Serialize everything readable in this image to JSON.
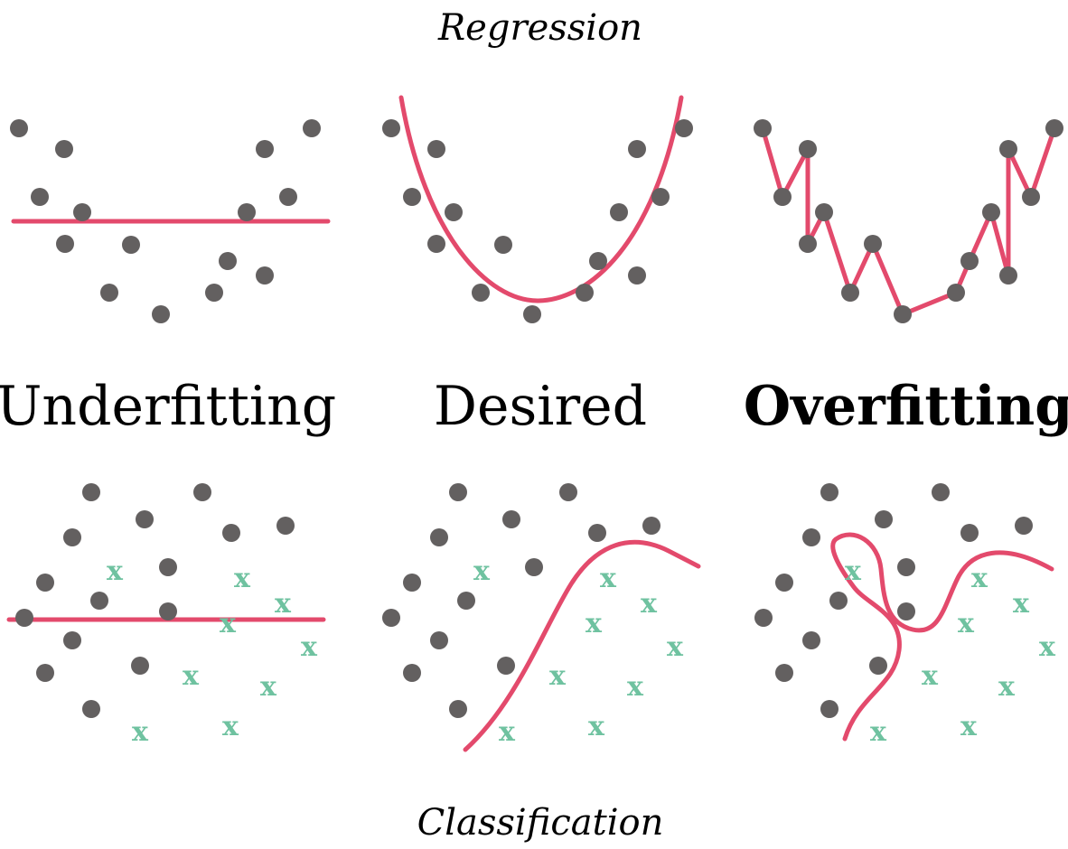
{
  "captions": {
    "top": "Regression",
    "bottom": "Classification"
  },
  "labels": {
    "underfitting": "Underfitting",
    "desired": "Desired",
    "overfitting": "Overfitting"
  },
  "class_marker": "x",
  "colors": {
    "point": "#636060",
    "fit": "#e34a6c",
    "class_x": "#6fc2a0",
    "text": "#000000"
  }
}
